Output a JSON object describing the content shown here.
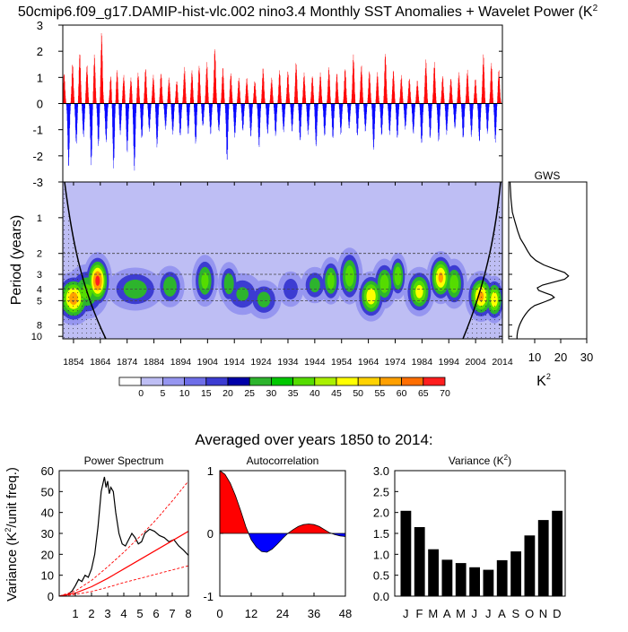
{
  "title": "50cmip6.f09_g17.DAMIP-hist-vlc.002 nino3.4 Monthly SST Anomalies + Wavelet Power (K",
  "title_superscript": "2",
  "chart_data": [
    {
      "id": "anomaly",
      "type": "bar",
      "ylim": [
        -3,
        3
      ],
      "yticks": [
        3,
        2,
        1,
        0,
        -1,
        -2,
        -3
      ],
      "yticks_labels": [
        "3",
        "2",
        "1",
        "0",
        "-1",
        "-2",
        "-3"
      ],
      "x_range": [
        1850,
        2014
      ],
      "colors": {
        "positive": "#ff0000",
        "negative": "#0000ff"
      },
      "events": [
        [
          1850.4,
          1.2
        ],
        [
          1852.1,
          -2.5
        ],
        [
          1853.6,
          1.6
        ],
        [
          1855.0,
          -1.6
        ],
        [
          1856.3,
          2.0
        ],
        [
          1857.7,
          -1.3
        ],
        [
          1859.0,
          1.5
        ],
        [
          1860.6,
          -2.4
        ],
        [
          1861.8,
          1.9
        ],
        [
          1863.3,
          -1.7
        ],
        [
          1864.5,
          2.8
        ],
        [
          1866.2,
          -1.5
        ],
        [
          1867.9,
          1.1
        ],
        [
          1869.0,
          -2.5
        ],
        [
          1870.3,
          1.3
        ],
        [
          1871.5,
          -1.2
        ],
        [
          1872.8,
          1.1
        ],
        [
          1874.1,
          -1.9
        ],
        [
          1875.5,
          1.0
        ],
        [
          1876.8,
          -2.6
        ],
        [
          1878.2,
          1.2
        ],
        [
          1879.6,
          -1.4
        ],
        [
          1881.0,
          1.4
        ],
        [
          1882.4,
          -1.1
        ],
        [
          1883.9,
          1.1
        ],
        [
          1885.3,
          -1.7
        ],
        [
          1886.8,
          1.2
        ],
        [
          1888.5,
          -1.0
        ],
        [
          1889.8,
          1.0
        ],
        [
          1891.2,
          -1.2
        ],
        [
          1892.7,
          0.9
        ],
        [
          1894.0,
          -1.3
        ],
        [
          1895.6,
          1.4
        ],
        [
          1897.0,
          -1.2
        ],
        [
          1898.4,
          1.3
        ],
        [
          1899.8,
          -1.6
        ],
        [
          1901.1,
          1.5
        ],
        [
          1902.5,
          -0.9
        ],
        [
          1904.0,
          1.6
        ],
        [
          1905.4,
          -1.2
        ],
        [
          1907.0,
          2.2
        ],
        [
          1908.5,
          -1.1
        ],
        [
          1910.0,
          1.4
        ],
        [
          1911.6,
          -2.3
        ],
        [
          1913.0,
          1.2
        ],
        [
          1914.5,
          -1.3
        ],
        [
          1916.0,
          1.0
        ],
        [
          1917.5,
          -1.1
        ],
        [
          1919.0,
          1.0
        ],
        [
          1920.5,
          -1.3
        ],
        [
          1922.0,
          0.9
        ],
        [
          1923.6,
          -1.7
        ],
        [
          1925.1,
          1.4
        ],
        [
          1926.8,
          -1.2
        ],
        [
          1928.3,
          1.0
        ],
        [
          1929.8,
          -1.3
        ],
        [
          1931.3,
          1.3
        ],
        [
          1932.8,
          -1.1
        ],
        [
          1934.4,
          1.3
        ],
        [
          1936.0,
          -1.1
        ],
        [
          1937.5,
          1.6
        ],
        [
          1939.0,
          -1.5
        ],
        [
          1940.5,
          1.2
        ],
        [
          1942.0,
          -1.2
        ],
        [
          1943.6,
          1.1
        ],
        [
          1945.0,
          -1.7
        ],
        [
          1946.6,
          1.2
        ],
        [
          1948.2,
          -1.3
        ],
        [
          1949.8,
          1.4
        ],
        [
          1951.3,
          -1.4
        ],
        [
          1952.8,
          1.2
        ],
        [
          1954.3,
          -1.2
        ],
        [
          1955.9,
          1.4
        ],
        [
          1957.4,
          -1.0
        ],
        [
          1959.0,
          1.9
        ],
        [
          1960.5,
          -1.3
        ],
        [
          1962.0,
          1.5
        ],
        [
          1963.5,
          -1.1
        ],
        [
          1965.0,
          1.3
        ],
        [
          1966.6,
          -1.8
        ],
        [
          1968.0,
          1.2
        ],
        [
          1969.6,
          -1.3
        ],
        [
          1971.0,
          2.0
        ],
        [
          1972.6,
          -1.2
        ],
        [
          1974.0,
          1.3
        ],
        [
          1975.5,
          -1.4
        ],
        [
          1977.0,
          1.1
        ],
        [
          1978.5,
          -1.0
        ],
        [
          1980.0,
          1.0
        ],
        [
          1981.5,
          -1.2
        ],
        [
          1983.0,
          0.9
        ],
        [
          1984.6,
          -1.6
        ],
        [
          1986.2,
          1.7
        ],
        [
          1987.8,
          -1.4
        ],
        [
          1989.4,
          1.6
        ],
        [
          1991.0,
          -1.5
        ],
        [
          1992.5,
          1.1
        ],
        [
          1994.0,
          -1.2
        ],
        [
          1995.6,
          1.0
        ],
        [
          1997.1,
          -1.0
        ],
        [
          1998.6,
          1.2
        ],
        [
          2000.2,
          -1.4
        ],
        [
          2001.8,
          1.3
        ],
        [
          2003.3,
          -1.3
        ],
        [
          2004.8,
          1.0
        ],
        [
          2006.3,
          -1.5
        ],
        [
          2007.8,
          1.9
        ],
        [
          2009.3,
          -1.2
        ],
        [
          2010.8,
          1.6
        ],
        [
          2012.3,
          -1.5
        ],
        [
          2013.6,
          1.3
        ]
      ]
    },
    {
      "id": "wavelet",
      "type": "heatmap",
      "ylabel": "Period (years)",
      "yticks": [
        1,
        2,
        3,
        4,
        5,
        8,
        10
      ],
      "yticks_labels": [
        "1",
        "2",
        "3",
        "4",
        "5",
        "8",
        "10"
      ],
      "ylim": [
        0.5,
        10.5
      ],
      "x_range": [
        1850,
        2014
      ],
      "xticks": [
        1854,
        1864,
        1874,
        1884,
        1894,
        1904,
        1914,
        1924,
        1934,
        1944,
        1954,
        1964,
        1974,
        1984,
        1994,
        2004,
        2014
      ],
      "xticks_labels": [
        "1854",
        "1864",
        "1874",
        "1884",
        "1894",
        "1904",
        "1914",
        "1924",
        "1934",
        "1944",
        "1954",
        "1964",
        "1974",
        "1984",
        "1994",
        "2004",
        "2014"
      ],
      "dashed_periods": [
        2,
        3,
        4,
        5
      ],
      "blobs": [
        [
          1854,
          4.8,
          5,
          1.2,
          62
        ],
        [
          1863,
          3.4,
          3.5,
          0.9,
          70
        ],
        [
          1859,
          4.2,
          6,
          1.2,
          40
        ],
        [
          1877,
          4.0,
          8,
          0.9,
          35
        ],
        [
          1890,
          3.8,
          4,
          0.8,
          38
        ],
        [
          1903,
          3.4,
          3.5,
          0.9,
          42
        ],
        [
          1912,
          3.6,
          3,
          0.8,
          38
        ],
        [
          1917,
          4.4,
          6,
          1.0,
          30
        ],
        [
          1925,
          4.9,
          5,
          1.0,
          33
        ],
        [
          1935,
          4.0,
          4,
          0.8,
          25
        ],
        [
          1944,
          3.7,
          4,
          0.7,
          33
        ],
        [
          1950,
          3.4,
          3,
          0.8,
          44
        ],
        [
          1957,
          3.1,
          3.5,
          0.9,
          45
        ],
        [
          1965,
          4.6,
          4,
          1.1,
          55
        ],
        [
          1970,
          3.6,
          3.5,
          0.9,
          45
        ],
        [
          1975,
          3.1,
          2.5,
          0.7,
          48
        ],
        [
          1983,
          4.2,
          4,
          1.0,
          52
        ],
        [
          1991,
          3.2,
          3.5,
          0.8,
          60
        ],
        [
          1996,
          3.6,
          3.5,
          0.9,
          45
        ],
        [
          2006,
          4.6,
          4,
          1.1,
          60
        ],
        [
          2011,
          4.9,
          3,
          1.1,
          55
        ]
      ]
    },
    {
      "id": "gws",
      "type": "line",
      "title": "GWS",
      "xlabel": "K",
      "xlabel_superscript": "2",
      "xlim": [
        0,
        30
      ],
      "xticks": [
        10,
        20,
        30
      ],
      "xticks_labels": [
        "10",
        "20",
        "30"
      ],
      "period": [
        0.5,
        0.7,
        0.9,
        1.1,
        1.3,
        1.5,
        1.7,
        1.9,
        2.1,
        2.3,
        2.5,
        2.7,
        2.9,
        3.1,
        3.3,
        3.5,
        3.7,
        3.9,
        4.1,
        4.3,
        4.5,
        4.7,
        4.9,
        5.1,
        5.3,
        5.5,
        5.8,
        6.1,
        6.5,
        7.0,
        7.5,
        8.0,
        8.5,
        9.0,
        9.5,
        10.0,
        10.5
      ],
      "power": [
        0.5,
        0.9,
        1.4,
        2.5,
        3.5,
        4.5,
        6.0,
        7.2,
        8.5,
        10.5,
        13.5,
        17.5,
        21.5,
        23.0,
        21.5,
        17.0,
        13.0,
        11.0,
        11.5,
        14.0,
        16.5,
        17.5,
        16.0,
        14.0,
        12.0,
        10.0,
        8.5,
        7.5,
        6.5,
        5.5,
        4.8,
        4.2,
        3.8,
        3.5,
        3.3,
        3.2,
        3.2
      ]
    },
    {
      "id": "spectrum",
      "type": "line",
      "title": "Power Spectrum",
      "ylabel": "Variance (K",
      "ylabel_superscript": "2",
      "ylabel_suffix": "/unit freq.)",
      "xlim": [
        0,
        8
      ],
      "ylim": [
        0,
        60
      ],
      "xticks": [
        1,
        2,
        3,
        4,
        5,
        6,
        7,
        8
      ],
      "xticks_labels": [
        "1",
        "2",
        "3",
        "4",
        "5",
        "6",
        "7",
        "8"
      ],
      "yticks": [
        0,
        10,
        20,
        30,
        40,
        50,
        60
      ],
      "yticks_labels": [
        "0",
        "10",
        "20",
        "30",
        "40",
        "50",
        "60"
      ],
      "series": [
        {
          "color": "#000000",
          "dash": false,
          "x": [
            0.1,
            0.5,
            0.8,
            1.0,
            1.2,
            1.4,
            1.6,
            1.8,
            2.0,
            2.2,
            2.4,
            2.6,
            2.8,
            2.9,
            3.0,
            3.1,
            3.2,
            3.35,
            3.5,
            3.7,
            3.9,
            4.1,
            4.3,
            4.5,
            4.7,
            4.9,
            5.1,
            5.3,
            5.6,
            5.9,
            6.2,
            6.5,
            6.8,
            7.1,
            7.4,
            7.7,
            8.0
          ],
          "y": [
            0.2,
            0.6,
            2.5,
            5.0,
            8.0,
            7.0,
            10.0,
            9.0,
            13.0,
            20.0,
            33.0,
            50.0,
            57.0,
            52.0,
            55.0,
            49.0,
            52.0,
            50.0,
            40.0,
            30.0,
            25.0,
            24.0,
            27.0,
            30.0,
            28.0,
            25.0,
            26.0,
            30.0,
            32.0,
            31.0,
            29.0,
            28.0,
            26.0,
            27.0,
            24.0,
            22.0,
            19.5
          ]
        },
        {
          "color": "#ff0000",
          "dash": false,
          "x": [
            0,
            1,
            2,
            3,
            4,
            5,
            6,
            7,
            8
          ],
          "y": [
            0,
            1.5,
            4.5,
            8.5,
            13.0,
            17.5,
            22.0,
            26.5,
            31.0
          ]
        },
        {
          "color": "#ff0000",
          "dash": true,
          "x": [
            0,
            1,
            2,
            3,
            4,
            5,
            6,
            7,
            8
          ],
          "y": [
            0,
            2.5,
            7.5,
            14.0,
            21.0,
            28.5,
            36.5,
            45.5,
            55.0
          ]
        },
        {
          "color": "#ff0000",
          "dash": true,
          "x": [
            0,
            1,
            2,
            3,
            4,
            5,
            6,
            7,
            8
          ],
          "y": [
            0,
            0.8,
            2.2,
            4.2,
            6.5,
            8.5,
            10.5,
            12.5,
            14.5
          ]
        }
      ]
    },
    {
      "id": "autocorrelation",
      "type": "area",
      "title": "Autocorrelation",
      "xlim": [
        0,
        48
      ],
      "ylim": [
        -1,
        1
      ],
      "xticks": [
        0,
        12,
        24,
        36,
        48
      ],
      "xticks_labels": [
        "0",
        "12",
        "24",
        "36",
        "48"
      ],
      "yticks": [
        -1,
        0,
        1
      ],
      "yticks_labels": [
        "-1",
        "0",
        "1"
      ],
      "colors": {
        "positive": "#ff0000",
        "negative": "#0000ff"
      },
      "x": [
        0,
        2,
        4,
        6,
        8,
        10,
        12,
        14,
        16,
        18,
        20,
        22,
        24,
        26,
        28,
        30,
        32,
        34,
        36,
        38,
        40,
        42,
        44,
        46,
        48
      ],
      "y": [
        1.0,
        0.94,
        0.8,
        0.6,
        0.36,
        0.1,
        -0.1,
        -0.22,
        -0.29,
        -0.3,
        -0.25,
        -0.17,
        -0.08,
        0.0,
        0.06,
        0.11,
        0.14,
        0.15,
        0.14,
        0.11,
        0.06,
        0.01,
        -0.02,
        -0.04,
        -0.05
      ]
    },
    {
      "id": "variance",
      "type": "bar",
      "title": "Variance (K",
      "title_superscript": "2",
      "title_suffix": ")",
      "categories": [
        "J",
        "F",
        "M",
        "A",
        "M",
        "J",
        "J",
        "A",
        "S",
        "O",
        "N",
        "D"
      ],
      "values": [
        2.04,
        1.65,
        1.12,
        0.87,
        0.79,
        0.69,
        0.63,
        0.86,
        1.07,
        1.45,
        1.82,
        2.04
      ],
      "ylim": [
        0,
        3
      ],
      "yticks": [
        0,
        0.5,
        1,
        1.5,
        2,
        2.5,
        3
      ],
      "yticks_labels": [
        "0.0",
        "0.5",
        "1.0",
        "1.5",
        "2.0",
        "2.5",
        "3.0"
      ],
      "color": "#000000"
    }
  ],
  "colorbar": {
    "labels": [
      "0",
      "5",
      "10",
      "15",
      "20",
      "25",
      "30",
      "35",
      "40",
      "45",
      "50",
      "55",
      "60",
      "65",
      "70"
    ],
    "colors": [
      "#ffffff",
      "#bebef4",
      "#9696f0",
      "#6e6ee8",
      "#3c3cd2",
      "#0000a8",
      "#2db42d",
      "#00c800",
      "#55dc00",
      "#aaf000",
      "#ffff00",
      "#ffd200",
      "#ffa000",
      "#ff6e00",
      "#ff1e1e"
    ]
  },
  "averaged_title": "Averaged over years 1850 to 2014:"
}
